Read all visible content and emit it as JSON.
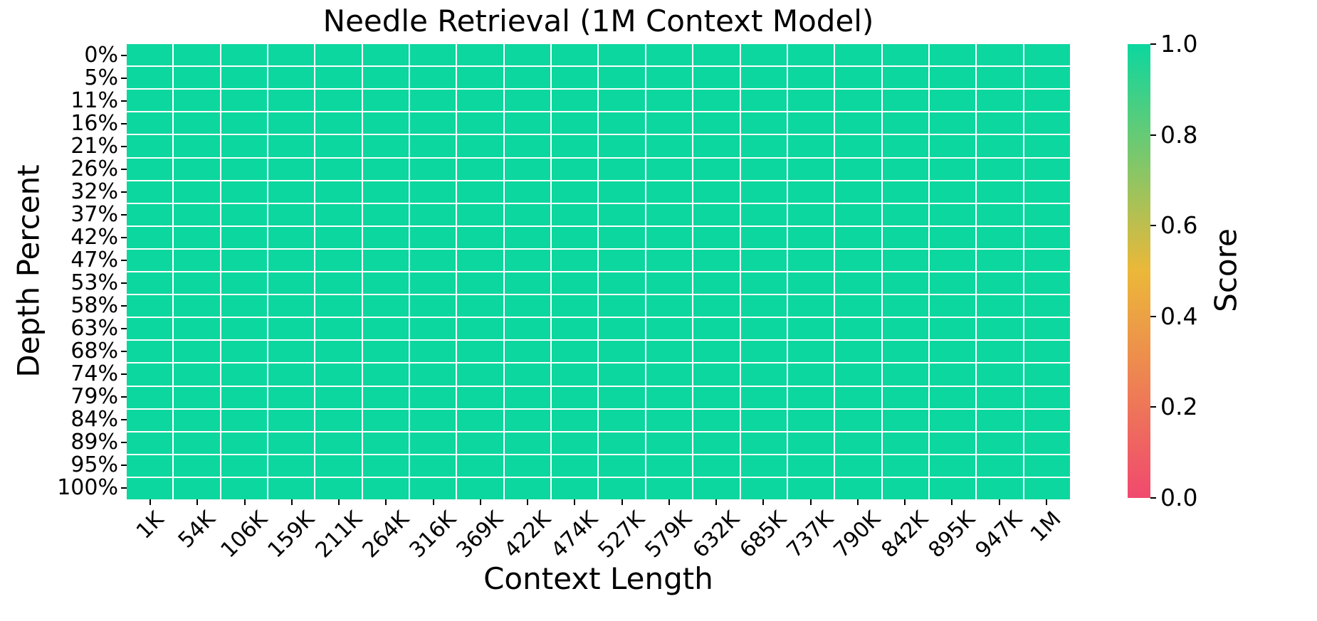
{
  "chart_data": {
    "type": "heatmap",
    "title": "Needle Retrieval (1M Context Model)",
    "xlabel": "Context Length",
    "ylabel": "Depth Percent",
    "x_categories": [
      "1K",
      "54K",
      "106K",
      "159K",
      "211K",
      "264K",
      "316K",
      "369K",
      "422K",
      "474K",
      "527K",
      "579K",
      "632K",
      "685K",
      "737K",
      "790K",
      "842K",
      "895K",
      "947K",
      "1M"
    ],
    "y_categories": [
      "0%",
      "5%",
      "11%",
      "16%",
      "21%",
      "26%",
      "32%",
      "37%",
      "42%",
      "47%",
      "53%",
      "58%",
      "63%",
      "68%",
      "74%",
      "79%",
      "84%",
      "89%",
      "95%",
      "100%"
    ],
    "values": [
      [
        1.0,
        1.0,
        1.0,
        1.0,
        1.0,
        1.0,
        1.0,
        1.0,
        1.0,
        1.0,
        1.0,
        1.0,
        1.0,
        1.0,
        1.0,
        1.0,
        1.0,
        1.0,
        1.0,
        1.0
      ],
      [
        1.0,
        1.0,
        1.0,
        1.0,
        1.0,
        1.0,
        1.0,
        1.0,
        1.0,
        1.0,
        1.0,
        1.0,
        1.0,
        1.0,
        1.0,
        1.0,
        1.0,
        1.0,
        1.0,
        1.0
      ],
      [
        1.0,
        1.0,
        1.0,
        1.0,
        1.0,
        1.0,
        1.0,
        1.0,
        1.0,
        1.0,
        1.0,
        1.0,
        1.0,
        1.0,
        1.0,
        1.0,
        1.0,
        1.0,
        1.0,
        1.0
      ],
      [
        1.0,
        1.0,
        1.0,
        1.0,
        1.0,
        1.0,
        1.0,
        1.0,
        1.0,
        1.0,
        1.0,
        1.0,
        1.0,
        1.0,
        1.0,
        1.0,
        1.0,
        1.0,
        1.0,
        1.0
      ],
      [
        1.0,
        1.0,
        1.0,
        1.0,
        1.0,
        1.0,
        1.0,
        1.0,
        1.0,
        1.0,
        1.0,
        1.0,
        1.0,
        1.0,
        1.0,
        1.0,
        1.0,
        1.0,
        1.0,
        1.0
      ],
      [
        1.0,
        1.0,
        1.0,
        1.0,
        1.0,
        1.0,
        1.0,
        1.0,
        1.0,
        1.0,
        1.0,
        1.0,
        1.0,
        1.0,
        1.0,
        1.0,
        1.0,
        1.0,
        1.0,
        1.0
      ],
      [
        1.0,
        1.0,
        1.0,
        1.0,
        1.0,
        1.0,
        1.0,
        1.0,
        1.0,
        1.0,
        1.0,
        1.0,
        1.0,
        1.0,
        1.0,
        1.0,
        1.0,
        1.0,
        1.0,
        1.0
      ],
      [
        1.0,
        1.0,
        1.0,
        1.0,
        1.0,
        1.0,
        1.0,
        1.0,
        1.0,
        1.0,
        1.0,
        1.0,
        1.0,
        1.0,
        1.0,
        1.0,
        1.0,
        1.0,
        1.0,
        1.0
      ],
      [
        1.0,
        1.0,
        1.0,
        1.0,
        1.0,
        1.0,
        1.0,
        1.0,
        1.0,
        1.0,
        1.0,
        1.0,
        1.0,
        1.0,
        1.0,
        1.0,
        1.0,
        1.0,
        1.0,
        1.0
      ],
      [
        1.0,
        1.0,
        1.0,
        1.0,
        1.0,
        1.0,
        1.0,
        1.0,
        1.0,
        1.0,
        1.0,
        1.0,
        1.0,
        1.0,
        1.0,
        1.0,
        1.0,
        1.0,
        1.0,
        1.0
      ],
      [
        1.0,
        1.0,
        1.0,
        1.0,
        1.0,
        1.0,
        1.0,
        1.0,
        1.0,
        1.0,
        1.0,
        1.0,
        1.0,
        1.0,
        1.0,
        1.0,
        1.0,
        1.0,
        1.0,
        1.0
      ],
      [
        1.0,
        1.0,
        1.0,
        1.0,
        1.0,
        1.0,
        1.0,
        1.0,
        1.0,
        1.0,
        1.0,
        1.0,
        1.0,
        1.0,
        1.0,
        1.0,
        1.0,
        1.0,
        1.0,
        1.0
      ],
      [
        1.0,
        1.0,
        1.0,
        1.0,
        1.0,
        1.0,
        1.0,
        1.0,
        1.0,
        1.0,
        1.0,
        1.0,
        1.0,
        1.0,
        1.0,
        1.0,
        1.0,
        1.0,
        1.0,
        1.0
      ],
      [
        1.0,
        1.0,
        1.0,
        1.0,
        1.0,
        1.0,
        1.0,
        1.0,
        1.0,
        1.0,
        1.0,
        1.0,
        1.0,
        1.0,
        1.0,
        1.0,
        1.0,
        1.0,
        1.0,
        1.0
      ],
      [
        1.0,
        1.0,
        1.0,
        1.0,
        1.0,
        1.0,
        1.0,
        1.0,
        1.0,
        1.0,
        1.0,
        1.0,
        1.0,
        1.0,
        1.0,
        1.0,
        1.0,
        1.0,
        1.0,
        1.0
      ],
      [
        1.0,
        1.0,
        1.0,
        1.0,
        1.0,
        1.0,
        1.0,
        1.0,
        1.0,
        1.0,
        1.0,
        1.0,
        1.0,
        1.0,
        1.0,
        1.0,
        1.0,
        1.0,
        1.0,
        1.0
      ],
      [
        1.0,
        1.0,
        1.0,
        1.0,
        1.0,
        1.0,
        1.0,
        1.0,
        1.0,
        1.0,
        1.0,
        1.0,
        1.0,
        1.0,
        1.0,
        1.0,
        1.0,
        1.0,
        1.0,
        1.0
      ],
      [
        1.0,
        1.0,
        1.0,
        1.0,
        1.0,
        1.0,
        1.0,
        1.0,
        1.0,
        1.0,
        1.0,
        1.0,
        1.0,
        1.0,
        1.0,
        1.0,
        1.0,
        1.0,
        1.0,
        1.0
      ],
      [
        1.0,
        1.0,
        1.0,
        1.0,
        1.0,
        1.0,
        1.0,
        1.0,
        1.0,
        1.0,
        1.0,
        1.0,
        1.0,
        1.0,
        1.0,
        1.0,
        1.0,
        1.0,
        1.0,
        1.0
      ],
      [
        1.0,
        1.0,
        1.0,
        1.0,
        1.0,
        1.0,
        1.0,
        1.0,
        1.0,
        1.0,
        1.0,
        1.0,
        1.0,
        1.0,
        1.0,
        1.0,
        1.0,
        1.0,
        1.0,
        1.0
      ]
    ],
    "value_range": [
      0.0,
      1.0
    ],
    "grid_line_color": "#ffffff",
    "colorbar": {
      "label": "Score",
      "tick_labels": [
        "1.0",
        "0.8",
        "0.6",
        "0.4",
        "0.2",
        "0.0"
      ],
      "tick_values": [
        1.0,
        0.8,
        0.6,
        0.4,
        0.2,
        0.0
      ],
      "colormap_stops": [
        {
          "value": 0.0,
          "color": "#F0496E"
        },
        {
          "value": 0.5,
          "color": "#EBB839"
        },
        {
          "value": 1.0,
          "color": "#0CD79F"
        }
      ]
    },
    "layout_hints": {
      "x_tick_rotation_deg": 45,
      "colorbar_position": "right",
      "grid": "white-cell-separators"
    }
  }
}
